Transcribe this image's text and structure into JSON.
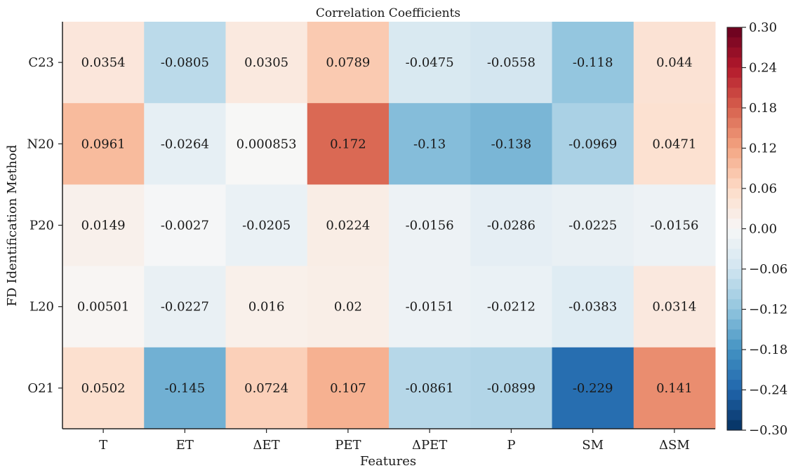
{
  "chart_data": {
    "type": "heatmap",
    "title": "Correlation Coefficients",
    "xlabel": "Features",
    "ylabel": "FD Identification Method",
    "x_categories": [
      "T",
      "ET",
      "ΔET",
      "PET",
      "ΔPET",
      "P",
      "SM",
      "ΔSM"
    ],
    "y_categories": [
      "C23",
      "N20",
      "P20",
      "L20",
      "O21"
    ],
    "values": [
      [
        0.0354,
        -0.0805,
        0.0305,
        0.0789,
        -0.0475,
        -0.0558,
        -0.118,
        0.044
      ],
      [
        0.0961,
        -0.0264,
        0.000853,
        0.172,
        -0.13,
        -0.138,
        -0.0969,
        0.0471
      ],
      [
        0.0149,
        -0.0027,
        -0.0205,
        0.0224,
        -0.0156,
        -0.0286,
        -0.0225,
        -0.0156
      ],
      [
        0.00501,
        -0.0227,
        0.016,
        0.02,
        -0.0151,
        -0.0212,
        -0.0383,
        0.0314
      ],
      [
        0.0502,
        -0.145,
        0.0724,
        0.107,
        -0.0861,
        -0.0899,
        -0.229,
        0.141
      ]
    ],
    "value_labels": [
      [
        "0.0354",
        "-0.0805",
        "0.0305",
        "0.0789",
        "-0.0475",
        "-0.0558",
        "-0.118",
        "0.044"
      ],
      [
        "0.0961",
        "-0.0264",
        "0.000853",
        "0.172",
        "-0.13",
        "-0.138",
        "-0.0969",
        "0.0471"
      ],
      [
        "0.0149",
        "-0.0027",
        "-0.0205",
        "0.0224",
        "-0.0156",
        "-0.0286",
        "-0.0225",
        "-0.0156"
      ],
      [
        "0.00501",
        "-0.0227",
        "0.016",
        "0.02",
        "-0.0151",
        "-0.0212",
        "-0.0383",
        "0.0314"
      ],
      [
        "0.0502",
        "-0.145",
        "0.0724",
        "0.107",
        "-0.0861",
        "-0.0899",
        "-0.229",
        "0.141"
      ]
    ],
    "colormap": "RdBu_r",
    "color_range": [
      -0.3,
      0.3
    ],
    "colorbar_ticks": [
      0.3,
      0.24,
      0.18,
      0.12,
      0.06,
      0.0,
      -0.06,
      -0.12,
      -0.18,
      -0.24,
      -0.3
    ],
    "colorbar_tick_labels": [
      "0.30",
      "0.24",
      "0.18",
      "0.12",
      "0.06",
      "0.00",
      "−0.06",
      "−0.12",
      "−0.18",
      "−0.24",
      "−0.30"
    ]
  }
}
